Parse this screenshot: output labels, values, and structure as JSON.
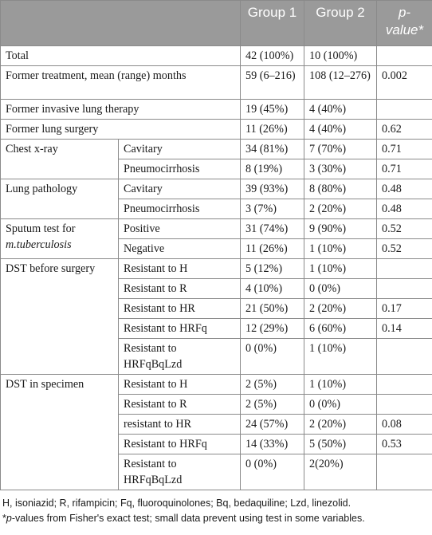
{
  "header": {
    "col1": "",
    "group1": "Group 1",
    "group2": "Group 2",
    "pvalue_italic": "p-",
    "pvalue_rest": "value*"
  },
  "rows": {
    "total": {
      "label": "Total",
      "g1": "42 (100%)",
      "g2": "10 (100%)",
      "p": ""
    },
    "former_treatment": {
      "label": "Former treatment, mean (range) months",
      "g1": "59 (6–216)",
      "g2": "108 (12–276)",
      "p": "0.002"
    },
    "former_invasive": {
      "label": "Former invasive lung therapy",
      "g1": "19 (45%)",
      "g2": "4 (40%)",
      "p": ""
    },
    "former_surgery": {
      "label": "Former lung surgery",
      "g1": "11 (26%)",
      "g2": "4 (40%)",
      "p": "0.62"
    },
    "chest_xray": {
      "label": "Chest x-ray",
      "sub": [
        {
          "label": "Cavitary",
          "g1": "34 (81%)",
          "g2": "7 (70%)",
          "p": "0.71"
        },
        {
          "label": "Pneumocirrhosis",
          "g1": "8 (19%)",
          "g2": "3 (30%)",
          "p": "0.71"
        }
      ]
    },
    "lung_pathology": {
      "label": "Lung pathology",
      "sub": [
        {
          "label": "Cavitary",
          "g1": "39 (93%)",
          "g2": "8 (80%)",
          "p": "0.48"
        },
        {
          "label": "Pneumocirrhosis",
          "g1": "3 (7%)",
          "g2": "2 (20%)",
          "p": "0.48"
        }
      ]
    },
    "sputum": {
      "label_a": "Sputum test for",
      "label_b": "m.tuberculosis",
      "sub": [
        {
          "label": "Positive",
          "g1": "31 (74%)",
          "g2": "9 (90%)",
          "p": "0.52"
        },
        {
          "label": "Negative",
          "g1": "11 (26%)",
          "g2": "1 (10%)",
          "p": "0.52"
        }
      ]
    },
    "dst_before": {
      "label": "DST before surgery",
      "sub": [
        {
          "label": "Resistant to H",
          "g1": "5 (12%)",
          "g2": "1 (10%)",
          "p": ""
        },
        {
          "label": "Resistant to R",
          "g1": "4 (10%)",
          "g2": "0 (0%)",
          "p": ""
        },
        {
          "label": "Resistant to HR",
          "g1": "21 (50%)",
          "g2": "2 (20%)",
          "p": "0.17"
        },
        {
          "label": "Resistant to HRFq",
          "g1": "12 (29%)",
          "g2": "6 (60%)",
          "p": "0.14"
        },
        {
          "label": "Resistant to HRFqBqLzd",
          "g1": "0 (0%)",
          "g2": "1 (10%)",
          "p": ""
        }
      ]
    },
    "dst_specimen": {
      "label": "DST in specimen",
      "sub": [
        {
          "label": "Resistant to H",
          "g1": "2 (5%)",
          "g2": "1 (10%)",
          "p": ""
        },
        {
          "label": "Resistant to R",
          "g1": "2 (5%)",
          "g2": "0 (0%)",
          "p": ""
        },
        {
          "label": "resistant to HR",
          "g1": "24 (57%)",
          "g2": "2 (20%)",
          "p": "0.08"
        },
        {
          "label": "Resistant to HRFq",
          "g1": "14 (33%)",
          "g2": "5 (50%)",
          "p": "0.53"
        },
        {
          "label": "Resistant to HRFqBqLzd",
          "g1": "0 (0%)",
          "g2": "2(20%)",
          "p": ""
        }
      ]
    }
  },
  "footnote": {
    "line1": "H, isoniazid; R, rifampicin; Fq, fluoroquinolones; Bq, bedaquiline; Lzd, linezolid.",
    "line2_star": "*",
    "line2_p": "p",
    "line2_rest": "-values from Fisher's exact test; small data prevent using test in some variables."
  }
}
